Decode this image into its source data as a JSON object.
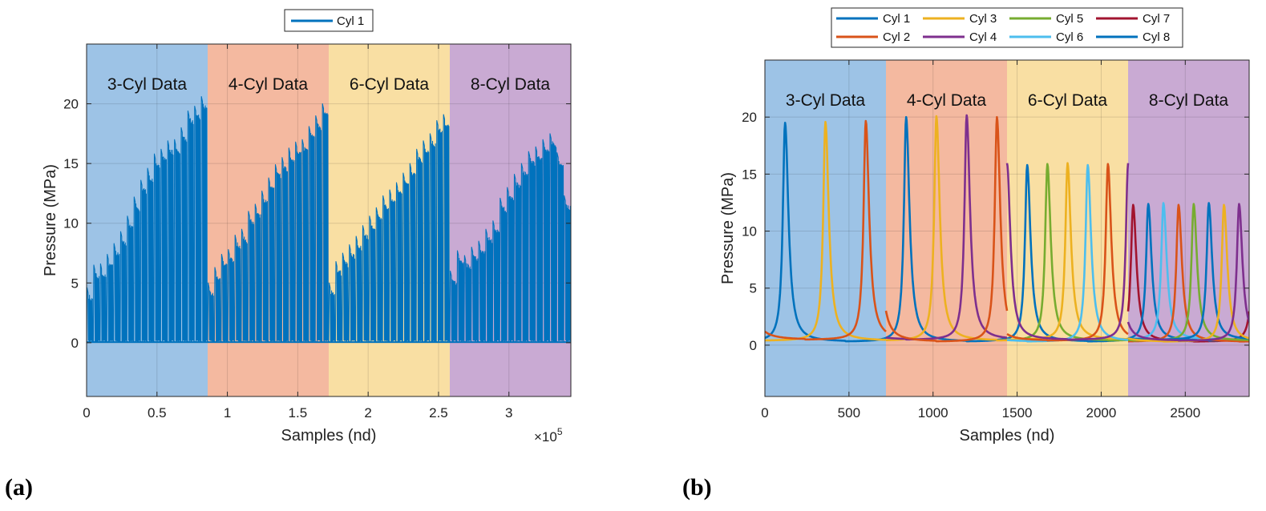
{
  "figure": {
    "panel_a_label": "(a)",
    "panel_b_label": "(b)"
  },
  "chart_data": [
    {
      "id": "a",
      "type": "line",
      "xlabel": "Samples (nd)",
      "ylabel": "Pressure (MPa)",
      "x_multiplier_label": "×10",
      "x_multiplier_exponent": "5",
      "xlim": [
        0,
        3.44
      ],
      "ylim": [
        -4.5,
        25
      ],
      "xticks": [
        0,
        0.5,
        1,
        1.5,
        2,
        2.5,
        3
      ],
      "xtick_labels": [
        "0",
        "0.5",
        "1",
        "1.5",
        "2",
        "2.5",
        "3"
      ],
      "yticks": [
        0,
        5,
        10,
        15,
        20
      ],
      "ytick_labels": [
        "0",
        "5",
        "10",
        "15",
        "20"
      ],
      "grid": true,
      "legend": {
        "position": "top-center",
        "entries": [
          {
            "name": "Cyl 1",
            "color": "#0072BD"
          }
        ]
      },
      "regions": [
        {
          "label": "3-Cyl Data",
          "x0": 0,
          "x1": 0.86,
          "color": "#9DC3E6"
        },
        {
          "label": "4-Cyl Data",
          "x0": 0.86,
          "x1": 1.72,
          "color": "#F4B9A0"
        },
        {
          "label": "6-Cyl Data",
          "x0": 1.72,
          "x1": 2.58,
          "color": "#F9DFA3"
        },
        {
          "label": "8-Cyl Data",
          "x0": 2.58,
          "x1": 3.44,
          "color": "#C9AAD3"
        }
      ],
      "series": [
        {
          "name": "Cyl 1",
          "color": "#0072BD",
          "baseline_min": 0.1,
          "segments": [
            {
              "x0": 0,
              "x1": 0.86,
              "steps": [
                4.6,
                6.5,
                6.6,
                7.4,
                8.3,
                9.3,
                10.6,
                12.2,
                13.6,
                14.6,
                15.8,
                16.2,
                16.9,
                17.0,
                18.0,
                19.4,
                19.8,
                20.6
              ]
            },
            {
              "x0": 0.86,
              "x1": 1.72,
              "steps": [
                5.0,
                6.3,
                7.4,
                7.8,
                9.0,
                9.5,
                11.0,
                11.6,
                12.7,
                13.8,
                14.9,
                15.5,
                16.3,
                16.8,
                17.0,
                18.1,
                19.0,
                20.0
              ]
            },
            {
              "x0": 1.72,
              "x1": 2.58,
              "steps": [
                5.0,
                6.8,
                7.5,
                8.2,
                8.9,
                9.8,
                10.6,
                11.3,
                12.3,
                12.8,
                13.4,
                14.2,
                15.0,
                16.2,
                16.9,
                17.5,
                18.6,
                19.1
              ]
            },
            {
              "x0": 2.58,
              "x1": 3.44,
              "steps": [
                6.0,
                7.7,
                7.3,
                8.0,
                8.5,
                9.5,
                10.2,
                12.1,
                13.0,
                14.1,
                15.0,
                16.0,
                16.4,
                17.0,
                17.5,
                15.9,
                12.3
              ]
            }
          ]
        }
      ]
    },
    {
      "id": "b",
      "type": "line",
      "xlabel": "Samples (nd)",
      "ylabel": "Pressure (MPa)",
      "xlim": [
        0,
        2880
      ],
      "ylim": [
        -4.5,
        25
      ],
      "xticks": [
        0,
        500,
        1000,
        1500,
        2000,
        2500
      ],
      "xtick_labels": [
        "0",
        "500",
        "1000",
        "1500",
        "2000",
        "2500"
      ],
      "yticks": [
        0,
        5,
        10,
        15,
        20
      ],
      "ytick_labels": [
        "0",
        "5",
        "10",
        "15",
        "20"
      ],
      "grid": true,
      "legend": {
        "position": "top-center",
        "entries": [
          {
            "name": "Cyl 1",
            "color": "#0072BD"
          },
          {
            "name": "Cyl 2",
            "color": "#D95319"
          },
          {
            "name": "Cyl 3",
            "color": "#EDB120"
          },
          {
            "name": "Cyl 4",
            "color": "#7E2F8E"
          },
          {
            "name": "Cyl 5",
            "color": "#77AC30"
          },
          {
            "name": "Cyl 6",
            "color": "#4DBEEE"
          },
          {
            "name": "Cyl 7",
            "color": "#A2142F"
          },
          {
            "name": "Cyl 8",
            "color": "#0072BD"
          }
        ]
      },
      "regions": [
        {
          "label": "3-Cyl Data",
          "x0": 0,
          "x1": 720,
          "color": "#9DC3E6"
        },
        {
          "label": "4-Cyl Data",
          "x0": 720,
          "x1": 1440,
          "color": "#F4B9A0"
        },
        {
          "label": "6-Cyl Data",
          "x0": 1440,
          "x1": 2160,
          "color": "#F9DFA3"
        },
        {
          "label": "8-Cyl Data",
          "x0": 2160,
          "x1": 2880,
          "color": "#C9AAD3"
        }
      ],
      "segments": [
        {
          "x0": 0,
          "x1": 720,
          "peak": 19.5,
          "cylinders": [
            1,
            3,
            2
          ],
          "peak_x": [
            120,
            360,
            600
          ]
        },
        {
          "x0": 720,
          "x1": 1440,
          "peak": 20.0,
          "cylinders": [
            1,
            3,
            4,
            2
          ],
          "peak_x": [
            840,
            1020,
            1200,
            1380
          ]
        },
        {
          "x0": 1440,
          "x1": 2160,
          "peak": 15.8,
          "cylinders": [
            1,
            5,
            3,
            6,
            2,
            4
          ],
          "peak_x": [
            1560,
            1680,
            1800,
            1920,
            2040,
            2160
          ]
        },
        {
          "x0": 2160,
          "x1": 2880,
          "peak": 12.3,
          "cylinders": [
            7,
            8,
            6,
            2,
            5,
            1,
            3,
            4
          ],
          "peak_x": [
            2190,
            2280,
            2370,
            2460,
            2550,
            2640,
            2730,
            2820
          ]
        }
      ]
    }
  ]
}
